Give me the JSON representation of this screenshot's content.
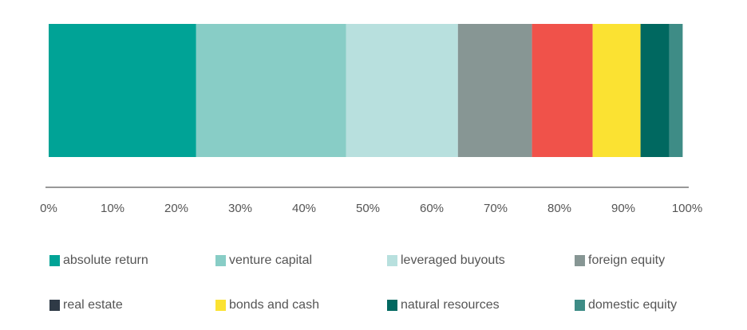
{
  "chart_data": {
    "type": "stacked-bar-horizontal",
    "xlim": [
      0,
      100
    ],
    "xticks": [
      {
        "value": 0,
        "label": "0%"
      },
      {
        "value": 10,
        "label": "10%"
      },
      {
        "value": 20,
        "label": "20%"
      },
      {
        "value": 30,
        "label": "30%"
      },
      {
        "value": 40,
        "label": "40%"
      },
      {
        "value": 50,
        "label": "50%"
      },
      {
        "value": 60,
        "label": "60%"
      },
      {
        "value": 70,
        "label": "70%"
      },
      {
        "value": 80,
        "label": "80%"
      },
      {
        "value": 90,
        "label": "90%"
      },
      {
        "value": 100,
        "label": "100%"
      }
    ],
    "series": [
      {
        "name": "absolute return",
        "color": "#00a396",
        "values": [
          23.1
        ]
      },
      {
        "name": "venture capital",
        "color": "#88cdc6",
        "values": [
          23.5
        ]
      },
      {
        "name": "leveraged buyouts",
        "color": "#b8e0de",
        "values": [
          17.5
        ]
      },
      {
        "name": "foreign equity",
        "color": "#879694",
        "values": [
          11.6
        ]
      },
      {
        "name": "real estate",
        "color": "#f0524a",
        "legend_color": "#2f3a46",
        "values": [
          9.5
        ]
      },
      {
        "name": "bonds and cash",
        "color": "#fbe232",
        "values": [
          7.5
        ]
      },
      {
        "name": "natural resources",
        "color": "#006860",
        "values": [
          4.5
        ]
      },
      {
        "name": "domestic equity",
        "color": "#3e8c86",
        "values": [
          2.1
        ]
      }
    ]
  }
}
